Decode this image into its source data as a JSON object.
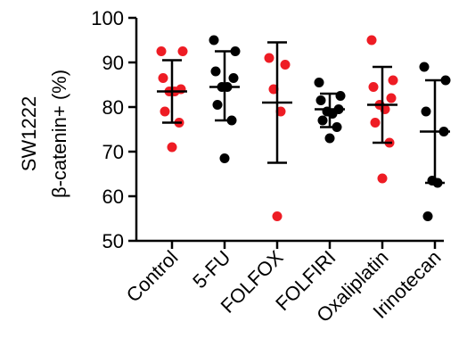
{
  "chart_data": {
    "type": "scatter",
    "title": "",
    "ylabel_line1": "SW1222",
    "ylabel_line2": "β-catenin+ (%)",
    "xlabel": "",
    "ylim": [
      50,
      100
    ],
    "yticks": [
      50,
      60,
      70,
      80,
      90,
      100
    ],
    "grid": false,
    "point_colors": {
      "red": "#ee1c24",
      "black": "#000000"
    },
    "categories": [
      "Control",
      "5-FU",
      "FOLFOX",
      "FOLFIRI",
      "Oxaliplatin",
      "Irinotecan"
    ],
    "groups": [
      {
        "name": "Control",
        "mean": 83.5,
        "sd_low": 76.5,
        "sd_high": 90.5,
        "points": [
          {
            "y": 92.5,
            "c": "red"
          },
          {
            "y": 92.5,
            "c": "red"
          },
          {
            "y": 86.5,
            "c": "red"
          },
          {
            "y": 84.0,
            "c": "red"
          },
          {
            "y": 83.5,
            "c": "red"
          },
          {
            "y": 83.5,
            "c": "red"
          },
          {
            "y": 79.0,
            "c": "red"
          },
          {
            "y": 76.5,
            "c": "red"
          },
          {
            "y": 71.0,
            "c": "red"
          }
        ]
      },
      {
        "name": "5-FU",
        "mean": 84.5,
        "sd_low": 77.0,
        "sd_high": 92.5,
        "points": [
          {
            "y": 95.0,
            "c": "black"
          },
          {
            "y": 92.5,
            "c": "black"
          },
          {
            "y": 88.0,
            "c": "black"
          },
          {
            "y": 86.5,
            "c": "black"
          },
          {
            "y": 84.5,
            "c": "black"
          },
          {
            "y": 84.5,
            "c": "black"
          },
          {
            "y": 80.5,
            "c": "black"
          },
          {
            "y": 77.0,
            "c": "black"
          },
          {
            "y": 68.5,
            "c": "black"
          }
        ]
      },
      {
        "name": "FOLFOX",
        "mean": 81.0,
        "sd_low": 67.5,
        "sd_high": 94.5,
        "points": [
          {
            "y": 91.0,
            "c": "red"
          },
          {
            "y": 89.5,
            "c": "red"
          },
          {
            "y": 84.0,
            "c": "red"
          },
          {
            "y": 79.0,
            "c": "red"
          },
          {
            "y": 55.5,
            "c": "red"
          }
        ]
      },
      {
        "name": "FOLFIRI",
        "mean": 79.5,
        "sd_low": 75.5,
        "sd_high": 83.0,
        "points": [
          {
            "y": 85.5,
            "c": "black"
          },
          {
            "y": 82.5,
            "c": "black"
          },
          {
            "y": 81.5,
            "c": "black"
          },
          {
            "y": 79.5,
            "c": "black"
          },
          {
            "y": 79.0,
            "c": "black"
          },
          {
            "y": 78.5,
            "c": "black"
          },
          {
            "y": 77.0,
            "c": "black"
          },
          {
            "y": 75.5,
            "c": "black"
          },
          {
            "y": 73.0,
            "c": "black"
          }
        ]
      },
      {
        "name": "Oxaliplatin",
        "mean": 80.5,
        "sd_low": 72.0,
        "sd_high": 89.0,
        "points": [
          {
            "y": 95.0,
            "c": "red"
          },
          {
            "y": 86.0,
            "c": "red"
          },
          {
            "y": 84.5,
            "c": "red"
          },
          {
            "y": 82.0,
            "c": "red"
          },
          {
            "y": 80.5,
            "c": "red"
          },
          {
            "y": 79.5,
            "c": "red"
          },
          {
            "y": 76.5,
            "c": "red"
          },
          {
            "y": 72.0,
            "c": "red"
          },
          {
            "y": 64.0,
            "c": "red"
          }
        ]
      },
      {
        "name": "Irinotecan",
        "mean": 74.5,
        "sd_low": 63.0,
        "sd_high": 86.0,
        "points": [
          {
            "y": 89.0,
            "c": "black"
          },
          {
            "y": 86.0,
            "c": "black"
          },
          {
            "y": 79.0,
            "c": "black"
          },
          {
            "y": 74.5,
            "c": "black"
          },
          {
            "y": 63.5,
            "c": "black"
          },
          {
            "y": 63.0,
            "c": "black"
          },
          {
            "y": 55.5,
            "c": "black"
          }
        ]
      }
    ]
  }
}
